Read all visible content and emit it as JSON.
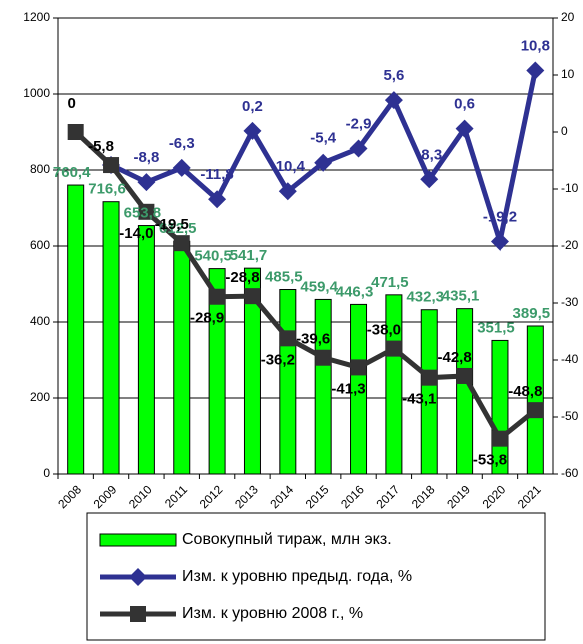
{
  "chart_data": {
    "type": "bar_line",
    "categories": [
      "2008",
      "2009",
      "2010",
      "2011",
      "2012",
      "2013",
      "2014",
      "2015",
      "2016",
      "2017",
      "2018",
      "2019",
      "2020",
      "2021"
    ],
    "ylim": [
      0,
      1200
    ],
    "yticks": [
      0,
      200,
      400,
      600,
      800,
      1000,
      1200
    ],
    "y2lim": [
      -60,
      20
    ],
    "y2ticks": [
      -60,
      -50,
      -40,
      -30,
      -20,
      -10,
      0,
      10,
      20
    ],
    "grid": true,
    "series": [
      {
        "name": "Совокупный тираж, млн экз.",
        "type": "bar",
        "color": "#00ff00",
        "label_color": "#3c9a6a",
        "values": [
          760.4,
          716.6,
          653.8,
          612.5,
          540.5,
          541.7,
          485.5,
          459.4,
          446.3,
          471.5,
          432.3,
          435.1,
          351.5,
          389.5
        ],
        "value_labels": [
          "760,4",
          "716,6",
          "653,8",
          "612,5",
          "540,5",
          "541,7",
          "485,5",
          "459,4",
          "446,3",
          "471,5",
          "432,3",
          "435,1",
          "351,5",
          "389,5"
        ]
      },
      {
        "name": "Изм. к уровню предыд. года, %",
        "type": "line",
        "axis": "y2",
        "color": "#2e3192",
        "values": [
          null,
          -5.8,
          -8.8,
          -6.3,
          -11.8,
          0.2,
          -10.4,
          -5.4,
          -2.9,
          5.6,
          -8.3,
          0.6,
          -19.2,
          10.8
        ],
        "value_labels": [
          null,
          null,
          "-8,8",
          "-6,3",
          "-11,8",
          "0,2",
          "-10,4",
          "-5,4",
          "-2,9",
          "5,6",
          "-8,3",
          "0,6",
          "-19,2",
          "10,8"
        ]
      },
      {
        "name": "Изм. к уровню 2008 г., %",
        "type": "line",
        "axis": "y2",
        "color": "#333333",
        "values": [
          0,
          -5.8,
          -14.0,
          -19.5,
          -28.9,
          -28.8,
          -36.2,
          -39.6,
          -41.3,
          -38.0,
          -43.1,
          -42.8,
          -53.8,
          -48.8
        ],
        "value_labels": [
          "0",
          "-5,8",
          "-14,0",
          "-19,5",
          "-28,9",
          "-28,8",
          "-36,2",
          "-39,6",
          "-41,3",
          "-38,0",
          "-43,1",
          "-42,8",
          "-53,8",
          "-48,8"
        ]
      }
    ]
  }
}
